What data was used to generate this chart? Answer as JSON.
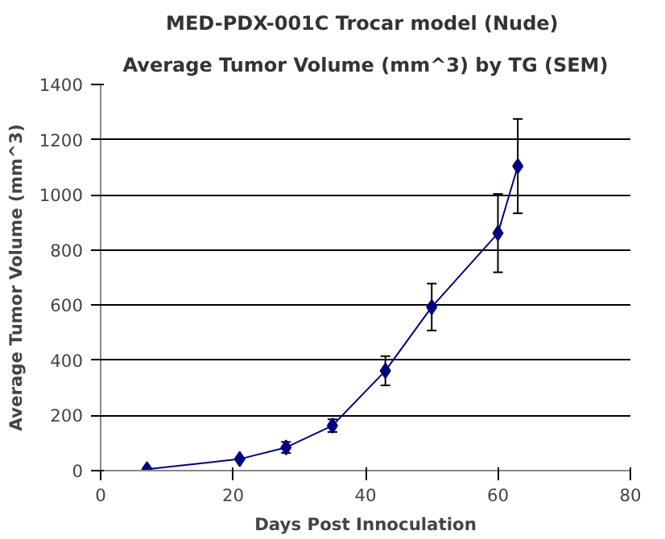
{
  "chart_data": {
    "type": "line",
    "title": "MED-PDX-001C Trocar model  (Nude)",
    "subtitle": "Average Tumor Volume (mm^3) by TG (SEM)",
    "xlabel": "Days Post Innoculation",
    "ylabel": "Average Tumor Volume (mm^3)",
    "x": [
      7,
      21,
      28,
      35,
      43,
      50,
      60,
      63
    ],
    "series": [
      {
        "color": "#000080",
        "values": [
          5,
          42,
          84,
          163,
          362,
          593,
          861,
          1104
        ],
        "errors": [
          null,
          null,
          20,
          23,
          53,
          85,
          142,
          171
        ]
      }
    ],
    "xlim": [
      0,
      80
    ],
    "xticks": [
      0,
      20,
      40,
      60,
      80
    ],
    "ylim": [
      0,
      1400
    ],
    "yticks": [
      0,
      200,
      400,
      600,
      800,
      1000,
      1200,
      1400
    ],
    "grid": "y",
    "marker": "diamond",
    "line_style": "solid"
  }
}
